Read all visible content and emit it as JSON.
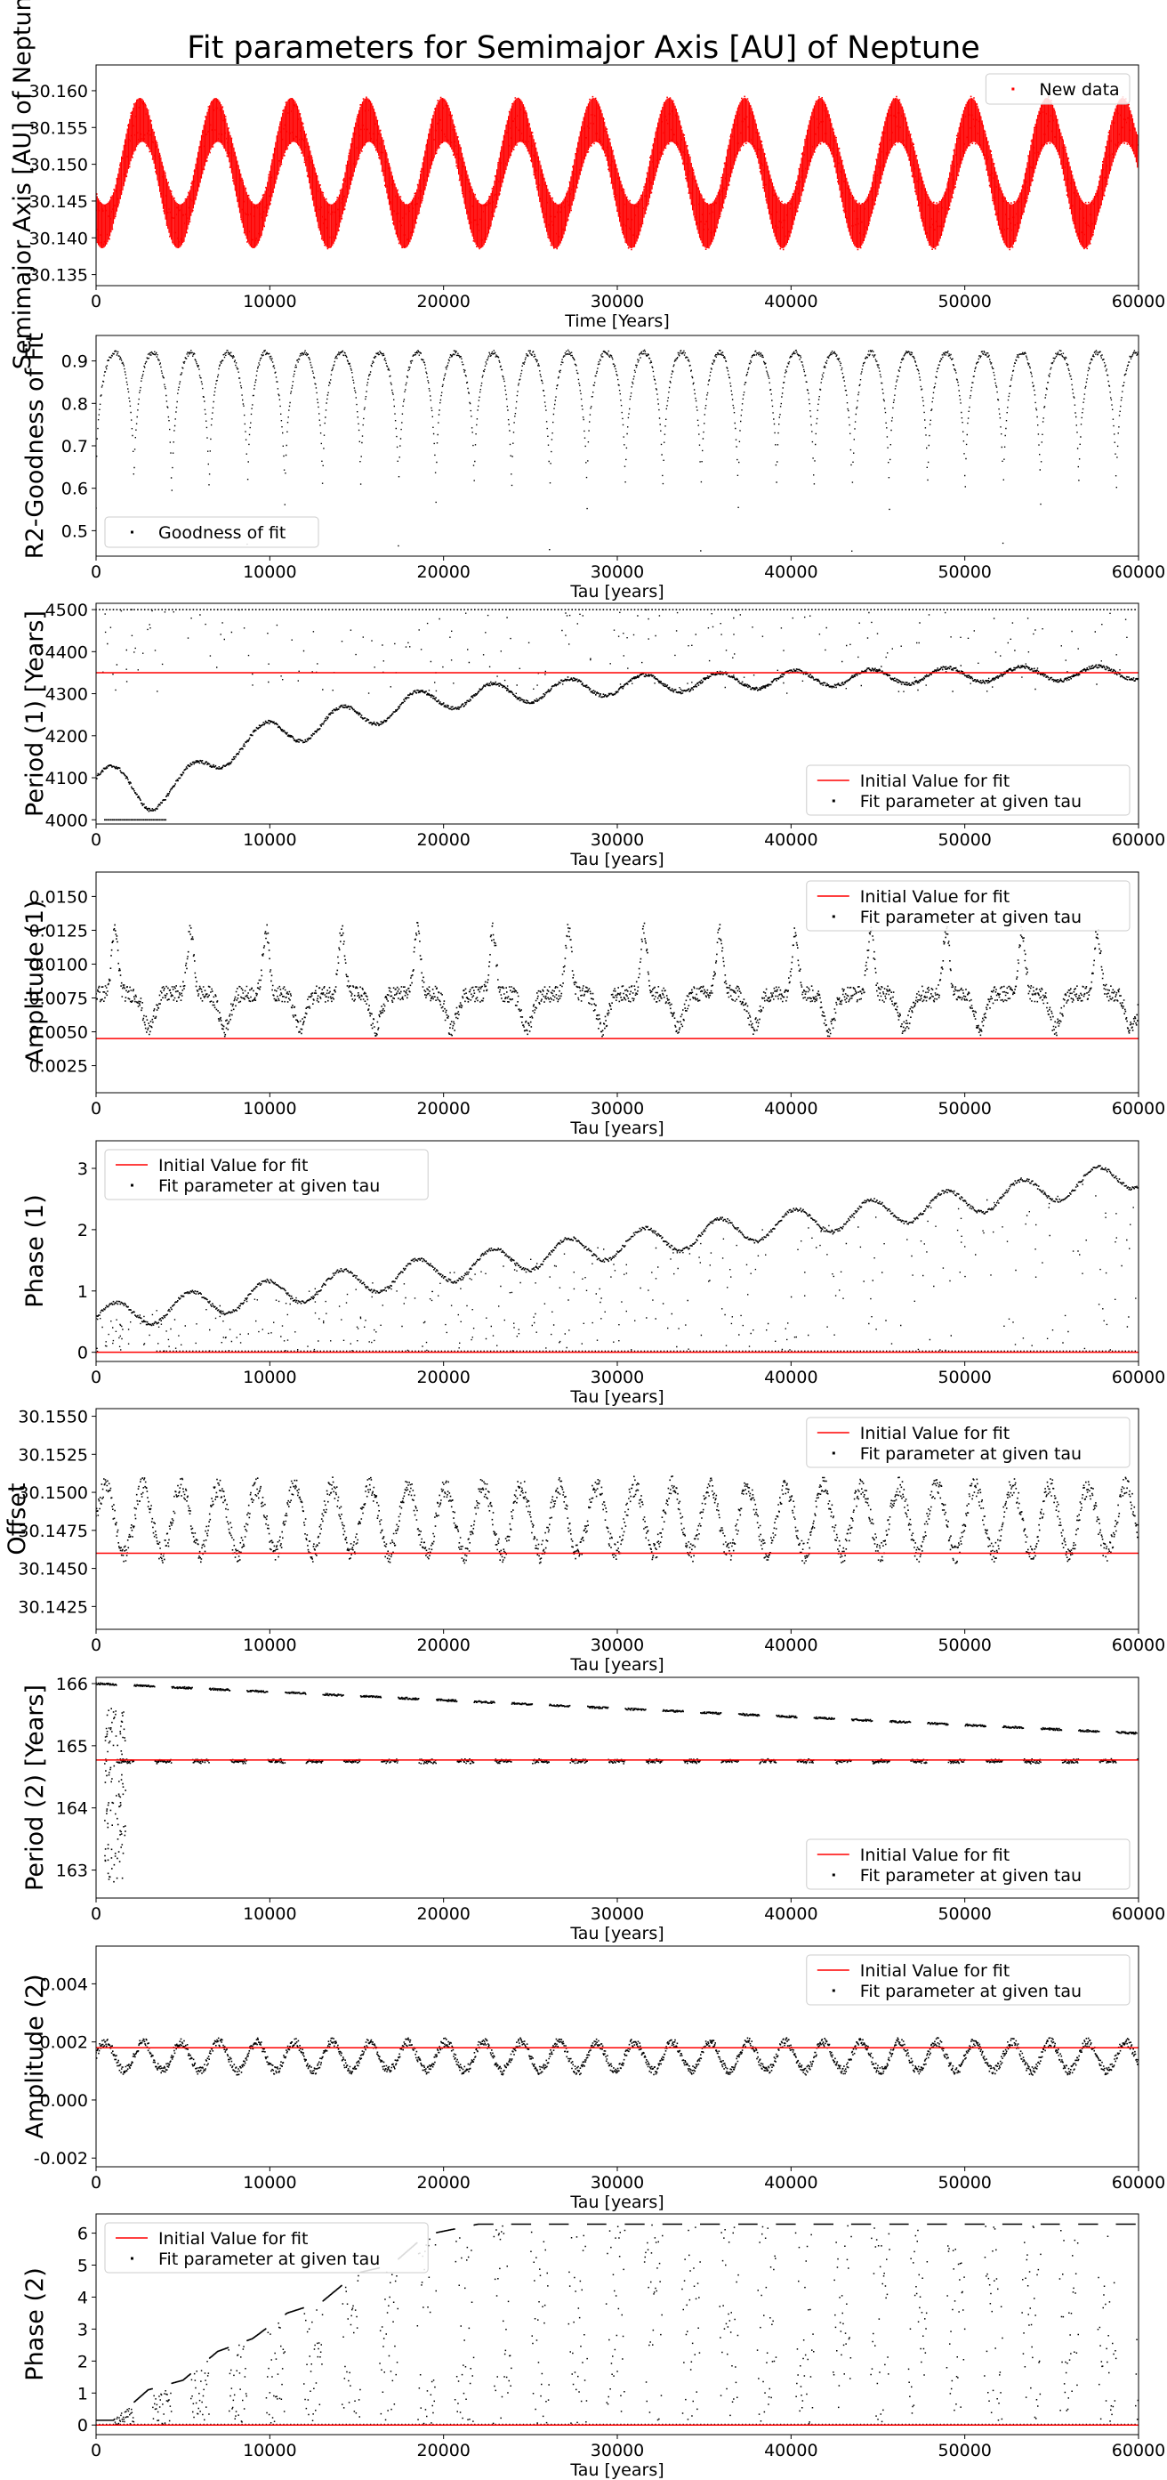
{
  "figure": {
    "title": "Fit parameters for Semimajor Axis [AU] of Neptune"
  },
  "colors": {
    "data": "#ff0000",
    "points": "#000000",
    "init_line": "#ff0000",
    "frame": "#000000"
  },
  "chart_data": [
    {
      "type": "scatter",
      "id": "semimajor",
      "ylabel": "Semimajor Axis [AU] of Neptune",
      "xlabel": "Time [Years]",
      "xlim": [
        0,
        60000
      ],
      "ylim": [
        30.1335,
        30.1635
      ],
      "xticks": [
        0,
        10000,
        20000,
        30000,
        40000,
        50000,
        60000
      ],
      "yticks": [
        "30.135",
        "30.140",
        "30.145",
        "30.150",
        "30.155",
        "30.160"
      ],
      "legend_position": "upper right",
      "legend": [
        {
          "label": "New data",
          "marker": "dot",
          "color": "#ff0000"
        }
      ],
      "series": [
        {
          "name": "New data",
          "style": "dense-oscillation",
          "color": "#ff0000",
          "long_period_years": 4350,
          "short_period_years": 165,
          "center_values": [
            30.1522,
            30.1555,
            30.1505,
            30.1418,
            30.141,
            30.148,
            30.1562,
            30.154
          ],
          "envelope_top_values": [
            30.156,
            30.1595,
            30.159,
            30.153,
            30.149
          ],
          "envelope_bottom_values": [
            30.138,
            30.137,
            30.138,
            30.1395,
            30.138
          ]
        }
      ]
    },
    {
      "type": "scatter",
      "id": "r2",
      "ylabel": "R2-Goodness of Fit",
      "xlabel": "Tau [years]",
      "xlim": [
        0,
        60000
      ],
      "ylim": [
        0.44,
        0.96
      ],
      "xticks": [
        0,
        10000,
        20000,
        30000,
        40000,
        50000,
        60000
      ],
      "yticks": [
        "0.5",
        "0.6",
        "0.7",
        "0.8",
        "0.9"
      ],
      "legend_position": "lower left",
      "legend": [
        {
          "label": "Goodness of fit",
          "marker": "dot",
          "color": "#000000"
        }
      ],
      "series": [
        {
          "name": "Goodness of fit",
          "style": "arches",
          "half_period_years": 2175,
          "plateau_value": 0.92,
          "dip_minima": [
            0.55,
            0.52,
            0.47,
            0.55,
            0.47,
            0.5,
            0.55,
            0.52,
            0.47,
            0.55,
            0.5,
            0.52,
            0.45,
            0.55,
            0.5,
            0.52,
            0.45,
            0.55,
            0.5,
            0.52,
            0.45,
            0.55,
            0.5,
            0.52,
            0.47,
            0.55,
            0.5,
            0.52
          ]
        }
      ]
    },
    {
      "type": "scatter",
      "id": "period1",
      "ylabel": "Period (1) [Years]",
      "xlabel": "Tau [years]",
      "xlim": [
        0,
        60000
      ],
      "ylim": [
        3990,
        4515
      ],
      "xticks": [
        0,
        10000,
        20000,
        30000,
        40000,
        50000,
        60000
      ],
      "yticks": [
        "4000",
        "4100",
        "4200",
        "4300",
        "4400",
        "4500"
      ],
      "initial_value": 4350,
      "legend_position": "lower right",
      "legend": [
        {
          "label": "Initial Value for fit",
          "marker": "line",
          "color": "#ff0000"
        },
        {
          "label": "Fit parameter at given tau",
          "marker": "dot",
          "color": "#000000"
        }
      ],
      "series": [
        {
          "name": "Fit parameter at given tau",
          "style": "converging-wave",
          "x": [
            0,
            3000,
            5000,
            8000,
            12000,
            20000,
            30000,
            40000,
            50000,
            60000
          ],
          "y": [
            4100,
            4060,
            4080,
            4180,
            4220,
            4290,
            4320,
            4335,
            4345,
            4350
          ],
          "upper_bound": 4500,
          "lower_bound": 4000
        }
      ]
    },
    {
      "type": "scatter",
      "id": "amplitude1",
      "ylabel": "Amplitude (1)",
      "xlabel": "Tau [years]",
      "xlim": [
        0,
        60000
      ],
      "ylim": [
        0.0005,
        0.0168
      ],
      "xticks": [
        0,
        10000,
        20000,
        30000,
        40000,
        50000,
        60000
      ],
      "yticks": [
        "0.0025",
        "0.0050",
        "0.0075",
        "0.0100",
        "0.0125",
        "0.0150"
      ],
      "initial_value": 0.0045,
      "legend_position": "upper right",
      "legend": [
        {
          "label": "Initial Value for fit",
          "marker": "line",
          "color": "#ff0000"
        },
        {
          "label": "Fit parameter at given tau",
          "marker": "dot",
          "color": "#000000"
        }
      ],
      "series": [
        {
          "name": "Fit parameter at given tau",
          "style": "periodic-peaks",
          "period_years": 4350,
          "baseline": 0.0078,
          "peak": 0.0125,
          "trough": 0.0052
        }
      ]
    },
    {
      "type": "scatter",
      "id": "phase1",
      "ylabel": "Phase (1)",
      "xlabel": "Tau [years]",
      "xlim": [
        0,
        60000
      ],
      "ylim": [
        -0.15,
        3.45
      ],
      "xticks": [
        0,
        10000,
        20000,
        30000,
        40000,
        50000,
        60000
      ],
      "yticks": [
        "0",
        "1",
        "2",
        "3"
      ],
      "initial_value": 0.0,
      "legend_position": "upper left",
      "legend": [
        {
          "label": "Initial Value for fit",
          "marker": "line",
          "color": "#ff0000"
        },
        {
          "label": "Fit parameter at given tau",
          "marker": "dot",
          "color": "#000000"
        }
      ],
      "series": [
        {
          "name": "Fit parameter at given tau",
          "style": "rising-wave",
          "x": [
            0,
            10000,
            20000,
            30000,
            40000,
            50000,
            60000
          ],
          "y": [
            0.55,
            0.95,
            1.35,
            1.75,
            2.1,
            2.45,
            2.9
          ]
        }
      ]
    },
    {
      "type": "scatter",
      "id": "offset",
      "ylabel": "Offset",
      "xlabel": "Tau [years]",
      "xlim": [
        0,
        60000
      ],
      "ylim": [
        30.141,
        30.1555
      ],
      "xticks": [
        0,
        10000,
        20000,
        30000,
        40000,
        50000,
        60000
      ],
      "yticks": [
        "30.1425",
        "30.1450",
        "30.1475",
        "30.1500",
        "30.1525",
        "30.1550"
      ],
      "initial_value": 30.146,
      "legend_position": "upper right",
      "legend": [
        {
          "label": "Initial Value for fit",
          "marker": "line",
          "color": "#ff0000"
        },
        {
          "label": "Fit parameter at given tau",
          "marker": "dot",
          "color": "#000000"
        }
      ],
      "series": [
        {
          "name": "Fit parameter at given tau",
          "style": "oscillation",
          "period_years": 2175,
          "center": 30.1482,
          "amplitude": 0.0022
        }
      ]
    },
    {
      "type": "scatter",
      "id": "period2",
      "ylabel": "Period (2) [Years]",
      "xlabel": "Tau [years]",
      "xlim": [
        0,
        60000
      ],
      "ylim": [
        162.55,
        166.1
      ],
      "xticks": [
        0,
        10000,
        20000,
        30000,
        40000,
        50000,
        60000
      ],
      "yticks": [
        "163",
        "164",
        "165",
        "166"
      ],
      "initial_value": 164.77,
      "legend_position": "lower right",
      "legend": [
        {
          "label": "Initial Value for fit",
          "marker": "line",
          "color": "#ff0000"
        },
        {
          "label": "Fit parameter at given tau",
          "marker": "dot",
          "color": "#000000"
        }
      ],
      "series": [
        {
          "name": "Fit parameter at given tau",
          "style": "sawtooth",
          "period_years": 2175,
          "upper_bound": 166.0,
          "lower_value": 164.75,
          "upper_end_value": 165.2
        }
      ]
    },
    {
      "type": "scatter",
      "id": "amplitude2",
      "ylabel": "Amplitude (2)",
      "xlabel": "Tau [years]",
      "xlim": [
        0,
        60000
      ],
      "ylim": [
        -0.0023,
        0.0053
      ],
      "xticks": [
        0,
        10000,
        20000,
        30000,
        40000,
        50000,
        60000
      ],
      "yticks": [
        "-0.002",
        "0.000",
        "0.002",
        "0.004"
      ],
      "initial_value": 0.0018,
      "legend_position": "upper right",
      "legend": [
        {
          "label": "Initial Value for fit",
          "marker": "line",
          "color": "#ff0000"
        },
        {
          "label": "Fit parameter at given tau",
          "marker": "dot",
          "color": "#000000"
        }
      ],
      "series": [
        {
          "name": "Fit parameter at given tau",
          "style": "oscillation",
          "period_years": 2175,
          "center": 0.0015,
          "amplitude": 0.0005
        }
      ]
    },
    {
      "type": "scatter",
      "id": "phase2",
      "ylabel": "Phase (2)",
      "xlabel": "Tau [years]",
      "xlim": [
        0,
        60000
      ],
      "ylim": [
        -0.3,
        6.6
      ],
      "xticks": [
        0,
        10000,
        20000,
        30000,
        40000,
        50000,
        60000
      ],
      "yticks": [
        "0",
        "1",
        "2",
        "3",
        "4",
        "5",
        "6"
      ],
      "initial_value": 0.0,
      "legend_position": "upper left",
      "legend": [
        {
          "label": "Initial Value for fit",
          "marker": "line",
          "color": "#ff0000"
        },
        {
          "label": "Fit parameter at given tau",
          "marker": "dot",
          "color": "#000000"
        }
      ],
      "series": [
        {
          "name": "Fit parameter at given tau",
          "style": "wrapping-phase",
          "period_years": 2175,
          "x": [
            1000,
            3000,
            5000,
            7000,
            9000,
            11000,
            13000,
            15000,
            17000,
            19000,
            22000
          ],
          "y": [
            0.15,
            1.1,
            1.4,
            2.3,
            2.7,
            3.5,
            3.85,
            4.75,
            5.0,
            5.95,
            6.28
          ],
          "upper_bound": 6.28
        }
      ]
    }
  ]
}
